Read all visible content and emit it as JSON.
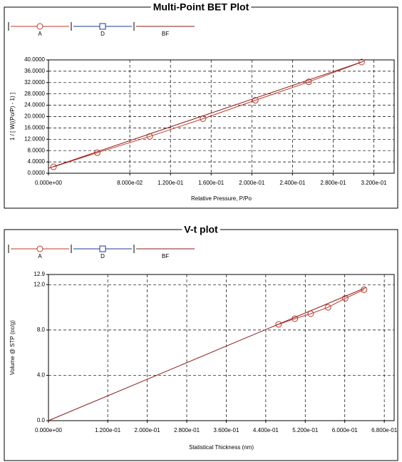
{
  "chart_data": [
    {
      "type": "line",
      "title": "Multi-Point BET Plot",
      "xlabel": "Relative Pressure, P/Po",
      "ylabel": "1 / [ W((Po/P) - 1) ]",
      "xlim": [
        0,
        0.34
      ],
      "ylim": [
        0,
        40
      ],
      "grid": true,
      "xticks": [
        {
          "value": 0,
          "label": "0.000e+00"
        },
        {
          "value": 0.08,
          "label": "8.000e-02"
        },
        {
          "value": 0.12,
          "label": "1.200e-01"
        },
        {
          "value": 0.16,
          "label": "1.600e-01"
        },
        {
          "value": 0.2,
          "label": "2.000e-01"
        },
        {
          "value": 0.24,
          "label": "2.400e-01"
        },
        {
          "value": 0.28,
          "label": "2.800e-01"
        },
        {
          "value": 0.32,
          "label": "3.200e-01"
        }
      ],
      "yticks": [
        {
          "value": 0,
          "label": "0.0000"
        },
        {
          "value": 4,
          "label": "4.0000"
        },
        {
          "value": 8,
          "label": "8.0000"
        },
        {
          "value": 12,
          "label": "12.0000"
        },
        {
          "value": 16,
          "label": "16.0000"
        },
        {
          "value": 20,
          "label": "20.0000"
        },
        {
          "value": 24,
          "label": "24.0000"
        },
        {
          "value": 28,
          "label": "28.0000"
        },
        {
          "value": 32,
          "label": "32.0000"
        },
        {
          "value": 36,
          "label": "36.0000"
        },
        {
          "value": 40,
          "label": "40.0000"
        }
      ],
      "series": [
        {
          "name": "A",
          "color": "#c0392b",
          "marker": "circle",
          "x": [
            0.005,
            0.048,
            0.0996,
            0.152,
            0.2035,
            0.256,
            0.308
          ],
          "values": [
            2.25,
            7.25,
            13,
            19.25,
            25.75,
            32.25,
            39.25
          ]
        },
        {
          "name": "D",
          "color": "#1f3a93",
          "marker": "square",
          "x": [],
          "values": []
        },
        {
          "name": "BF",
          "color": "#8b1a1a",
          "x": [
            0,
            0.31
          ],
          "values": [
            1.75,
            39.5
          ]
        }
      ]
    },
    {
      "type": "line",
      "title": "V-t plot",
      "xlabel": "Statistical Thickness (nm)",
      "ylabel": "Volume @ STP (cc/g)",
      "xlim": [
        0,
        0.7
      ],
      "ylim": [
        0,
        12.9
      ],
      "grid": true,
      "xticks": [
        {
          "value": 0,
          "label": "0.000e+00"
        },
        {
          "value": 0.12,
          "label": "1.200e-01"
        },
        {
          "value": 0.2,
          "label": "2.000e-01"
        },
        {
          "value": 0.28,
          "label": "2.800e-01"
        },
        {
          "value": 0.36,
          "label": "3.600e-01"
        },
        {
          "value": 0.44,
          "label": "4.400e-01"
        },
        {
          "value": 0.52,
          "label": "5.200e-01"
        },
        {
          "value": 0.6,
          "label": "6.000e-01"
        },
        {
          "value": 0.68,
          "label": "6.800e-01"
        }
      ],
      "yticks": [
        {
          "value": 0,
          "label": "0.0"
        },
        {
          "value": 4,
          "label": "4.0"
        },
        {
          "value": 8,
          "label": "8.0"
        },
        {
          "value": 12,
          "label": "12.0"
        },
        12.9
      ],
      "series": [
        {
          "name": "A",
          "color": "#c0392b",
          "marker": "circle",
          "x": [
            0.466,
            0.499,
            0.531,
            0.566,
            0.601,
            0.639
          ],
          "values": [
            8.5,
            9.0,
            9.44,
            10.0,
            10.8,
            11.56
          ]
        },
        {
          "name": "D",
          "color": "#1f3a93",
          "marker": "square",
          "x": [],
          "values": []
        },
        {
          "name": "BF",
          "color": "#8b1a1a",
          "x": [
            0,
            0.643
          ],
          "values": [
            0,
            11.75
          ]
        }
      ]
    }
  ]
}
